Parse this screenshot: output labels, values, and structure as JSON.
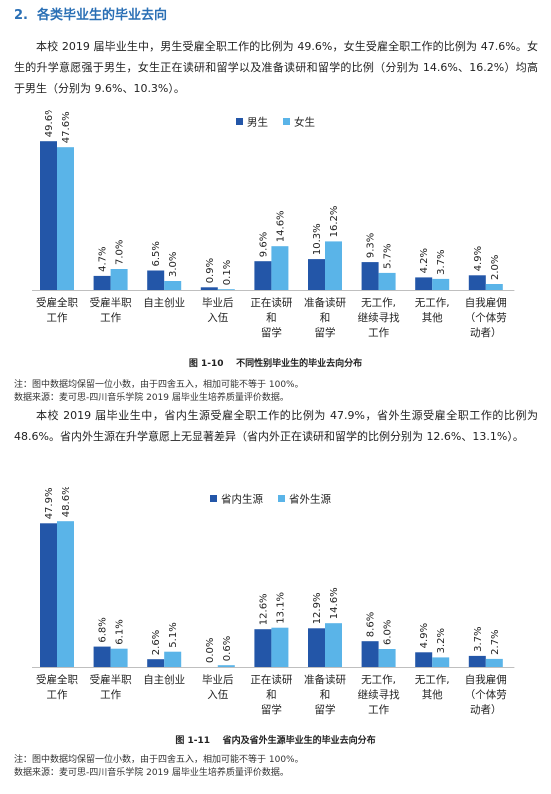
{
  "section": {
    "number": "2.",
    "title": "各类毕业生的毕业去向"
  },
  "para1": "本校 2019 届毕业生中，男生受雇全职工作的比例为 49.6%，女生受雇全职工作的比例为 47.6%。女生的升学意愿强于男生，女生正在读研和留学以及准备读研和留学的比例（分别为 14.6%、16.2%）均高于男生（分别为 9.6%、10.3%）。",
  "caption1": {
    "num": "图 1-10",
    "text": "不同性别毕业生的毕业去向分布"
  },
  "notes1": {
    "line1": "注：图中数据均保留一位小数，由于四舍五入，相加可能不等于 100%。",
    "line2": "数据来源：麦可思-四川音乐学院 2019 届毕业生培养质量评价数据。"
  },
  "para2": "本校 2019 届毕业生中，省内生源受雇全职工作的比例为 47.9%，省外生源受雇全职工作的比例为 48.6%。省内外生源在升学意愿上无显著差异（省内外正在读研和留学的比例分别为 12.6%、13.1%）。",
  "caption2": {
    "num": "图 1-11",
    "text": "省内及省外生源毕业生的毕业去向分布"
  },
  "notes2": {
    "line1": "注：图中数据均保留一位小数，由于四舍五入，相加可能不等于 100%。",
    "line2": "数据来源：麦可思-四川音乐学院 2019 届毕业生培养质量评价数据。"
  },
  "chart_data": [
    {
      "type": "bar",
      "categories": [
        [
          "受雇全职",
          "工作"
        ],
        [
          "受雇半职",
          "工作"
        ],
        [
          "自主创业"
        ],
        [
          "毕业后",
          "入伍"
        ],
        [
          "正在读研",
          "和",
          "留学"
        ],
        [
          "准备读研",
          "和",
          "留学"
        ],
        [
          "无工作,",
          "继续寻找",
          "工作"
        ],
        [
          "无工作,",
          "其他"
        ],
        [
          "自我雇佣",
          "（个体劳",
          "动者）"
        ]
      ],
      "series": [
        {
          "name": "男生",
          "color": "#2356a8",
          "values": [
            49.6,
            4.7,
            6.5,
            0.9,
            9.6,
            10.3,
            9.3,
            4.2,
            4.9
          ]
        },
        {
          "name": "女生",
          "color": "#5ab4e8",
          "values": [
            47.6,
            7.0,
            3.0,
            0.1,
            14.6,
            16.2,
            5.7,
            3.7,
            2.0
          ]
        }
      ],
      "value_format": "%",
      "legend": "top-right",
      "grid": false
    },
    {
      "type": "bar",
      "categories": [
        [
          "受雇全职",
          "工作"
        ],
        [
          "受雇半职",
          "工作"
        ],
        [
          "自主创业"
        ],
        [
          "毕业后",
          "入伍"
        ],
        [
          "正在读研",
          "和",
          "留学"
        ],
        [
          "准备读研",
          "和",
          "留学"
        ],
        [
          "无工作,",
          "继续寻找",
          "工作"
        ],
        [
          "无工作,",
          "其他"
        ],
        [
          "自我雇佣",
          "（个体劳",
          "动者）"
        ]
      ],
      "series": [
        {
          "name": "省内生源",
          "color": "#2356a8",
          "values": [
            47.9,
            6.8,
            2.6,
            0.0,
            12.6,
            12.9,
            8.6,
            4.9,
            3.7
          ]
        },
        {
          "name": "省外生源",
          "color": "#5ab4e8",
          "values": [
            48.6,
            6.1,
            5.1,
            0.6,
            13.1,
            14.6,
            6.0,
            3.2,
            2.7
          ]
        }
      ],
      "value_format": "%",
      "legend": "top-center",
      "grid": false
    }
  ]
}
